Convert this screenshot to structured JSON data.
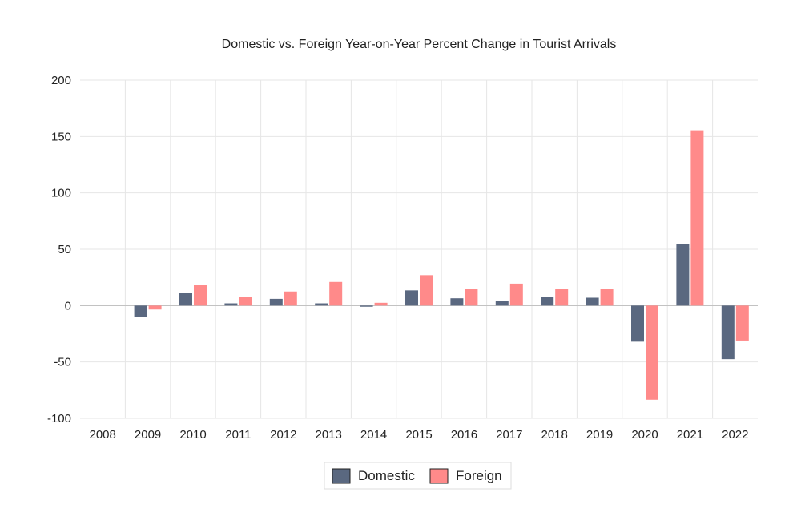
{
  "chart_data": {
    "type": "bar",
    "title": "Domestic vs. Foreign Year-on-Year Percent Change in Tourist Arrivals",
    "xlabel": "",
    "ylabel": "",
    "categories": [
      "2008",
      "2009",
      "2010",
      "2011",
      "2012",
      "2013",
      "2014",
      "2015",
      "2016",
      "2017",
      "2018",
      "2019",
      "2020",
      "2021",
      "2022"
    ],
    "series": [
      {
        "name": "Domestic",
        "color": "#5a6880",
        "values": [
          null,
          -10,
          11.5,
          2,
          6,
          2,
          -1,
          13.5,
          6.5,
          4,
          8,
          7,
          -32,
          54.5,
          -47.5
        ]
      },
      {
        "name": "Foreign",
        "color": "#ff8a8a",
        "values": [
          null,
          -3.5,
          18,
          8,
          12.5,
          21,
          2.5,
          27,
          15,
          19.5,
          14.5,
          14.5,
          -83.5,
          155.5,
          -31
        ]
      }
    ],
    "ylim": [
      -100,
      200
    ],
    "yticks": [
      200,
      150,
      100,
      50,
      0,
      -50,
      -100
    ],
    "ytick_labels": [
      "200",
      "150",
      "100",
      "50",
      "0",
      "-50",
      "-100"
    ],
    "grid": true,
    "legend_position": "bottom-center"
  }
}
